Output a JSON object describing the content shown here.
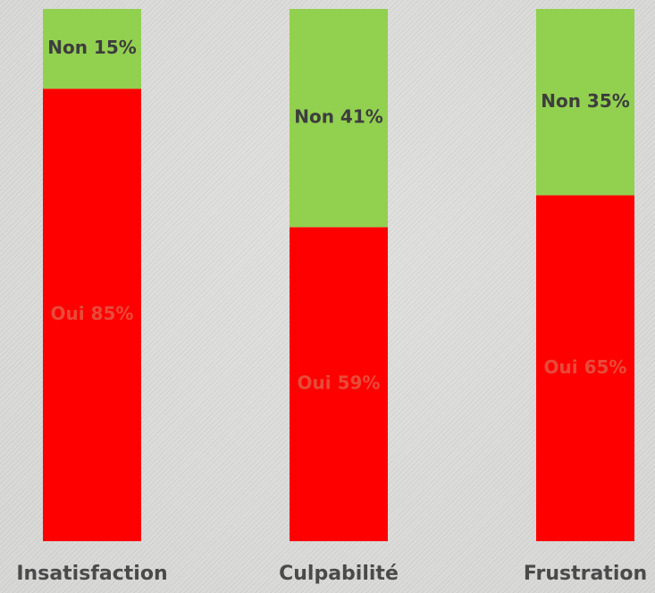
{
  "chart_data": {
    "type": "bar",
    "stacked": true,
    "normalized": true,
    "categories": [
      "Insatisfaction",
      "Culpabilité",
      "Frustration"
    ],
    "series": [
      {
        "name": "Oui",
        "values": [
          85,
          59,
          65
        ],
        "color": "#ff0000",
        "labels": [
          "Oui 85%",
          "Oui 59%",
          "Oui 65%"
        ],
        "label_color": "#e84a3a"
      },
      {
        "name": "Non",
        "values": [
          15,
          41,
          35
        ],
        "color": "#92d050",
        "labels": [
          "Non 15%",
          "Non 41%",
          "Non 35%"
        ],
        "label_color": "#3d3d3d"
      }
    ],
    "ylim": [
      0,
      100
    ],
    "grid": false,
    "category_label_color": "#4a4a4a"
  }
}
